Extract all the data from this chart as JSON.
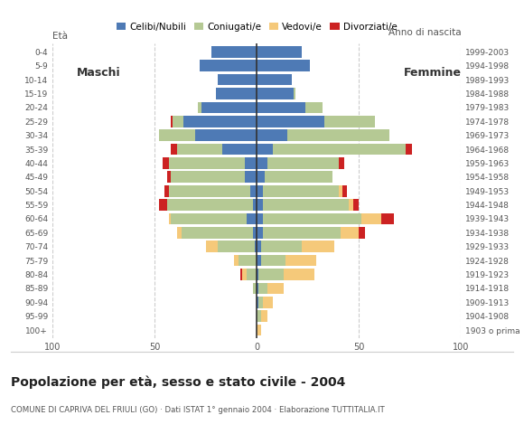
{
  "age_groups": [
    "100+",
    "95-99",
    "90-94",
    "85-89",
    "80-84",
    "75-79",
    "70-74",
    "65-69",
    "60-64",
    "55-59",
    "50-54",
    "45-49",
    "40-44",
    "35-39",
    "30-34",
    "25-29",
    "20-24",
    "15-19",
    "10-14",
    "5-9",
    "0-4"
  ],
  "birth_years": [
    "1903 o prima",
    "1904-1908",
    "1909-1913",
    "1914-1918",
    "1919-1923",
    "1924-1928",
    "1929-1933",
    "1934-1938",
    "1939-1943",
    "1944-1948",
    "1949-1953",
    "1954-1958",
    "1959-1963",
    "1964-1968",
    "1969-1973",
    "1974-1978",
    "1979-1983",
    "1984-1988",
    "1989-1993",
    "1994-1998",
    "1999-2003"
  ],
  "males": {
    "celibe": [
      0,
      0,
      0,
      0,
      0,
      0,
      1,
      2,
      5,
      2,
      3,
      6,
      6,
      17,
      30,
      36,
      27,
      20,
      19,
      28,
      22
    ],
    "coniugato": [
      0,
      0,
      0,
      2,
      5,
      9,
      18,
      35,
      37,
      42,
      40,
      36,
      37,
      22,
      18,
      5,
      2,
      0,
      0,
      0,
      0
    ],
    "vedovo": [
      0,
      0,
      0,
      0,
      2,
      2,
      6,
      2,
      1,
      0,
      0,
      0,
      0,
      0,
      0,
      0,
      0,
      0,
      0,
      0,
      0
    ],
    "divorziato": [
      0,
      0,
      0,
      0,
      1,
      0,
      0,
      0,
      0,
      4,
      2,
      2,
      3,
      3,
      0,
      1,
      0,
      0,
      0,
      0,
      0
    ]
  },
  "females": {
    "nubile": [
      0,
      0,
      1,
      1,
      1,
      2,
      2,
      3,
      3,
      3,
      3,
      4,
      5,
      8,
      15,
      33,
      24,
      18,
      17,
      26,
      22
    ],
    "coniugata": [
      0,
      2,
      2,
      4,
      12,
      12,
      20,
      38,
      48,
      42,
      37,
      33,
      35,
      65,
      50,
      25,
      8,
      1,
      0,
      0,
      0
    ],
    "vedova": [
      2,
      3,
      5,
      8,
      15,
      15,
      16,
      9,
      10,
      2,
      2,
      0,
      0,
      0,
      0,
      0,
      0,
      0,
      0,
      0,
      0
    ],
    "divorziata": [
      0,
      0,
      0,
      0,
      0,
      0,
      0,
      3,
      6,
      3,
      2,
      0,
      3,
      3,
      0,
      0,
      0,
      0,
      0,
      0,
      0
    ]
  },
  "colors": {
    "celibe_nubile": "#4e7ab5",
    "coniugato_coniugata": "#b5c994",
    "vedovo_vedova": "#f5c97a",
    "divorziato_divorziata": "#cc2222"
  },
  "title": "Popolazione per età, sesso e stato civile - 2004",
  "subtitle": "COMUNE DI CAPRIVA DEL FRIULI (GO) · Dati ISTAT 1° gennaio 2004 · Elaborazione TUTTITALIA.IT",
  "ylabel_left": "Età",
  "ylabel_right": "Anno di nascita",
  "label_maschi": "Maschi",
  "label_femmine": "Femmine",
  "xlim": 100,
  "legend_labels": [
    "Celibi/Nubili",
    "Coniugati/e",
    "Vedovi/e",
    "Divorziati/e"
  ],
  "background_color": "#ffffff",
  "grid_color": "#cccccc",
  "tick_color": "#555555"
}
